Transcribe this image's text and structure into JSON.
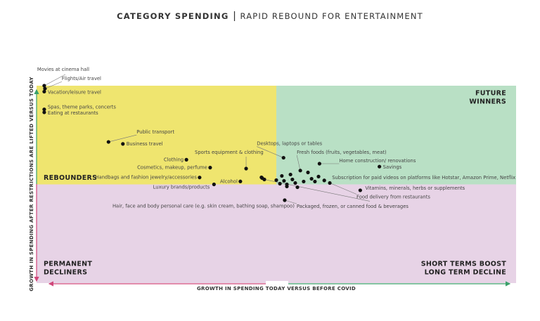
{
  "chart_data": {
    "type": "scatter",
    "title": "CATEGORY SPENDING",
    "subtitle": "RAPID REBOUND FOR ENTERTAINMENT",
    "x_label": "GROWTH IN SPENDING TODAY VERSUS BEFORE COVID",
    "y_label": "GROWTH IN SPENDING AFTER RESTRICTIONS ARE LIFTED VERSUS TODAY",
    "xlim": [
      -100,
      100
    ],
    "ylim": [
      -100,
      100
    ],
    "color": "#111111",
    "quadrants": [
      {
        "position": "top-left",
        "lines": [
          "REBOUNDERS"
        ],
        "color": "#efe56f"
      },
      {
        "position": "top-right",
        "lines": [
          "FUTURE",
          "WINNERS"
        ],
        "color": "#b9e0c5"
      },
      {
        "position": "bottom-left",
        "lines": [
          "PERMANENT",
          "DECLINERS"
        ],
        "color": "#e7d3e6"
      },
      {
        "position": "bottom-right",
        "lines": [
          "SHORT TERMS BOOST",
          "LONG TERM DECLINE"
        ],
        "color": "#e7d3e6"
      }
    ],
    "x": [
      -96.8,
      -96.5,
      -96.8,
      -96.8,
      -96.8,
      -70,
      -64,
      -37.5,
      -27.6,
      -12.6,
      -32,
      -26,
      -15,
      -5,
      3,
      10,
      18,
      43,
      20,
      35,
      22.3,
      3.5,
      -6.2,
      -5.9,
      0,
      1.5,
      2.3,
      3.2,
      4.4,
      5.9,
      6.7,
      7.9,
      8.8,
      11.4,
      13.2,
      14.7,
      16.1,
      17.6,
      4.4
    ],
    "y": [
      100,
      97,
      94,
      76,
      73,
      43,
      41,
      25,
      17,
      16,
      7,
      0,
      3,
      5,
      27,
      14,
      21,
      18,
      4,
      -6,
      1.4,
      -16,
      7.1,
      6.4,
      4.3,
      0.7,
      8.6,
      3.6,
      0,
      10,
      5,
      1.4,
      -2.9,
      2.9,
      12.1,
      5.7,
      2.9,
      7.9,
      -2.1
    ],
    "labels": [
      "Movies at cinema hall",
      "Flights/Air travel",
      "Vacation/leisure travel",
      "Spas, theme parks, concerts",
      "Eating at restaurants",
      "Public transport",
      "Business travel",
      "Clothing",
      "Cosmetics, makeup, perfume",
      "Sports equipment & clothing",
      "Handbags and fashion jewelry/accessories",
      "Luxury brands/products",
      "Alcohol",
      "Hair, face and body personal care (e.g. skin cream, bathing soap, shampoo)",
      "Desktops, laptops or tables",
      "Fresh foods (fruits, vegetables, meat)",
      "Home construction/ renovations",
      "Savings",
      "Subscription for paid videos on platforms like Hotstar, Amazon Prime, Netflix",
      "Vitamins, minerals, herbs or supplements",
      "Food delivery from restaurants",
      "Packaged, frozen, or canned food & beverages",
      null,
      null,
      null,
      null,
      null,
      null,
      null,
      null,
      null,
      null,
      null,
      null,
      null,
      null,
      null,
      null,
      null
    ]
  }
}
